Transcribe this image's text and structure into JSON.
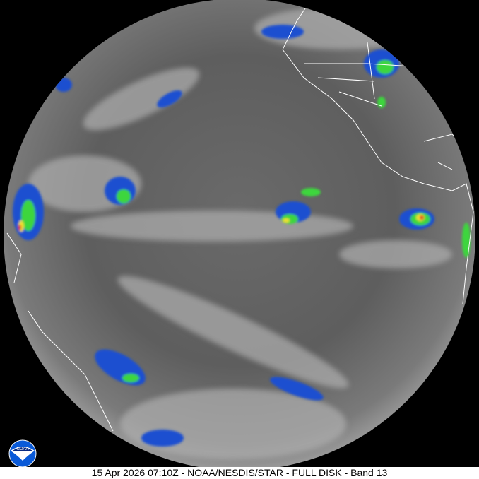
{
  "caption": "15 Apr 2026 07:10Z - NOAA/NESDIS/STAR - FULL DISK - Band 13",
  "logo": {
    "text": "NOAA",
    "icon": "noaa-logo"
  },
  "colors": {
    "background": "#000000",
    "cloud_cold": "#1a4fd0",
    "cloud_colder": "#3cd63c",
    "cloud_coldest": "#e02020",
    "cloud_cyan": "#40d0e0",
    "caption_bg": "#ffffff"
  }
}
